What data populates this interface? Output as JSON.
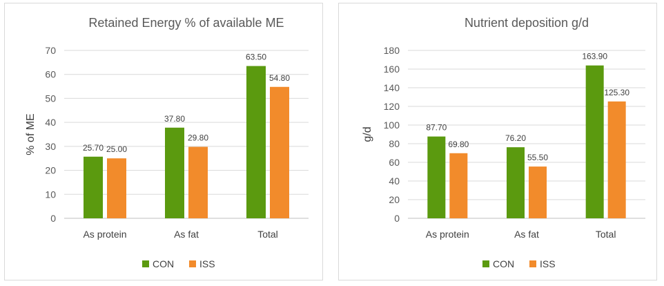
{
  "colors": {
    "CON": "#5b9a0f",
    "ISS": "#f28b2b",
    "grid": "#d9d9d9",
    "axis": "#bfbfbf"
  },
  "chart_data": [
    {
      "type": "bar",
      "title": "Retained Energy % of available ME",
      "ylabel": "% of ME",
      "xlabel": "",
      "ylim": [
        0,
        70
      ],
      "yticks": [
        "0",
        "10",
        "20",
        "30",
        "40",
        "50",
        "60",
        "70"
      ],
      "categories": [
        "As protein",
        "As fat",
        "Total"
      ],
      "series": [
        {
          "name": "CON",
          "values": [
            25.7,
            37.8,
            63.5
          ],
          "labels": [
            "25.70",
            "37.80",
            "63.50"
          ]
        },
        {
          "name": "ISS",
          "values": [
            25.0,
            29.8,
            54.8
          ],
          "labels": [
            "25.00",
            "29.80",
            "54.80"
          ]
        }
      ],
      "grid": true,
      "legend": "bottom"
    },
    {
      "type": "bar",
      "title": "Nutrient deposition g/d",
      "ylabel": "g/d",
      "xlabel": "",
      "ylim": [
        0,
        180
      ],
      "yticks": [
        "0",
        "20",
        "40",
        "60",
        "80",
        "100",
        "120",
        "140",
        "160",
        "180"
      ],
      "categories": [
        "As protein",
        "As fat",
        "Total"
      ],
      "series": [
        {
          "name": "CON",
          "values": [
            87.7,
            76.2,
            163.9
          ],
          "labels": [
            "87.70",
            "76.20",
            "163.90"
          ]
        },
        {
          "name": "ISS",
          "values": [
            69.8,
            55.5,
            125.3
          ],
          "labels": [
            "69.80",
            "55.50",
            "125.30"
          ]
        }
      ],
      "grid": true,
      "legend": "bottom"
    }
  ]
}
